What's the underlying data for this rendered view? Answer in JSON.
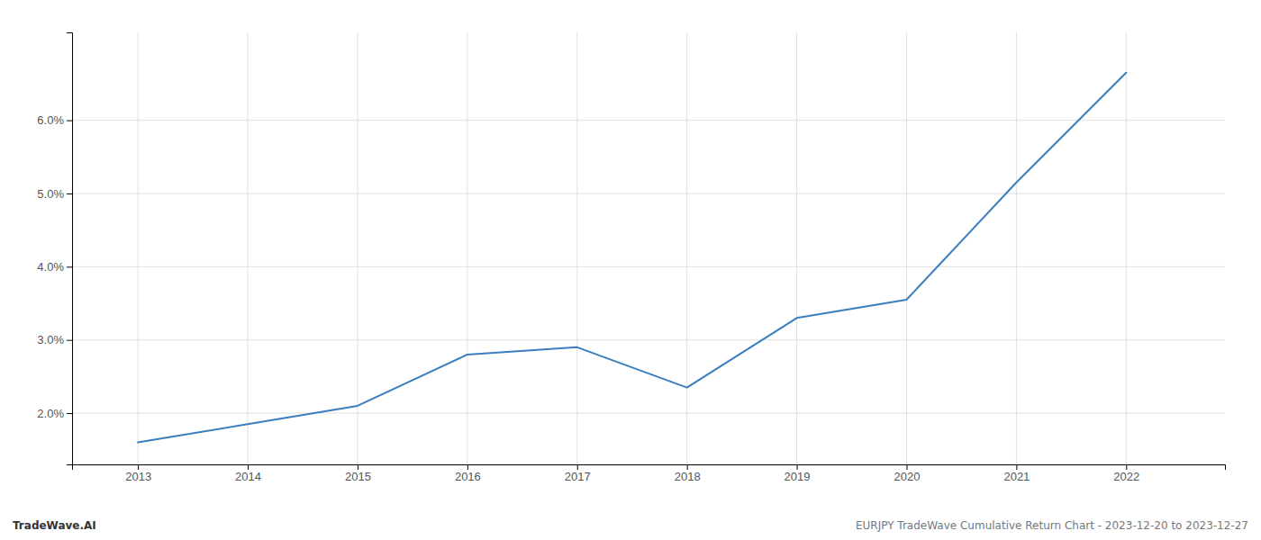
{
  "chart_data": {
    "type": "line",
    "x": [
      2013,
      2014,
      2015,
      2016,
      2017,
      2018,
      2019,
      2020,
      2021,
      2022
    ],
    "values": [
      1.6,
      1.85,
      2.1,
      2.8,
      2.9,
      2.35,
      3.3,
      3.55,
      5.15,
      6.65
    ],
    "color": "#3a7ebf",
    "xlim": [
      2012.4,
      2022.9
    ],
    "xticks": [
      2013,
      2014,
      2015,
      2016,
      2017,
      2018,
      2019,
      2020,
      2021,
      2022
    ],
    "ylim": [
      1.3,
      7.2
    ],
    "yticks": [
      {
        "value": 2.0,
        "label": "2.0%"
      },
      {
        "value": 3.0,
        "label": "3.0%"
      },
      {
        "value": 4.0,
        "label": "4.0%"
      },
      {
        "value": 5.0,
        "label": "5.0%"
      },
      {
        "value": 6.0,
        "label": "6.0%"
      }
    ],
    "grid": true,
    "annotations": [
      "TradeWave.AI",
      "EURJPY TradeWave Cumulative Return Chart - 2023-12-20 to 2023-12-27"
    ]
  }
}
